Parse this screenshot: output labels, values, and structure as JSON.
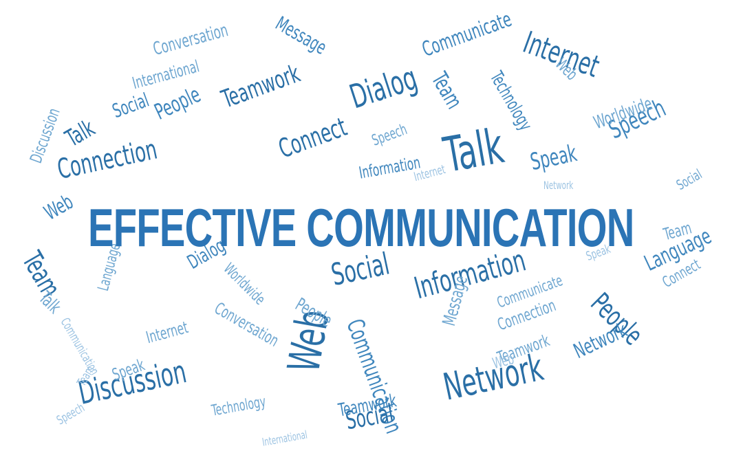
{
  "title": "EFFECTIVE COMMUNICATION",
  "colors": {
    "primary": "#2b74b5",
    "mid": "#3f86bd",
    "light": "#6ea6d0",
    "pale": "#9cc3e2"
  },
  "words": [
    "Talk",
    "Dialog",
    "Internet",
    "Teamwork",
    "Connection",
    "Connect",
    "Speak",
    "Speech",
    "Web",
    "Team",
    "Social",
    "Information",
    "People",
    "Language",
    "Network",
    "Discussion",
    "Communication",
    "Communicate",
    "Conversation",
    "Message",
    "Technology",
    "International",
    "Worldwide",
    "Talk",
    "Web",
    "Social",
    "Network",
    "People",
    "Team",
    "Speech"
  ]
}
